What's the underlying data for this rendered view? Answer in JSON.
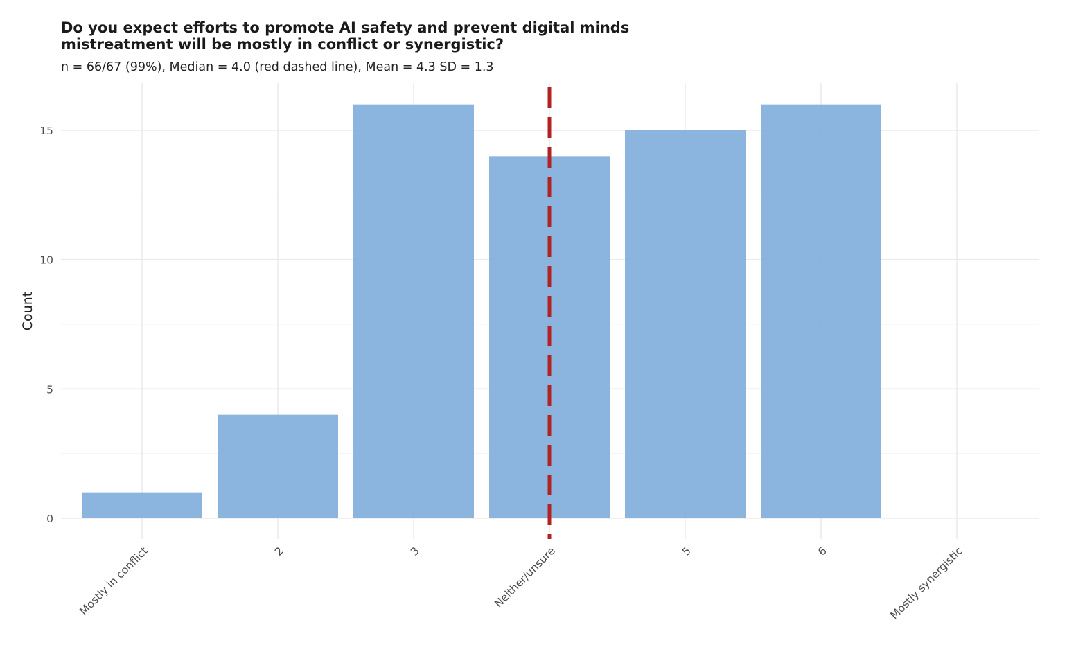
{
  "chart_data": {
    "type": "bar",
    "title": "Do you expect efforts to promote AI safety and prevent digital minds mistreatment will be mostly in conflict or synergistic?",
    "title_lines": [
      "Do you expect efforts to promote AI safety and prevent digital minds",
      "mistreatment will be mostly in conflict or synergistic?"
    ],
    "subtitle": "n = 66/67 (99%), Median = 4.0 (red dashed line), Mean = 4.3 SD = 1.3",
    "xlabel": "",
    "ylabel": "Count",
    "categories": [
      "Mostly in conflict",
      "2",
      "3",
      "Neither/unsure",
      "5",
      "6",
      "Mostly synergistic"
    ],
    "values": [
      1,
      4,
      16,
      14,
      15,
      16,
      0
    ],
    "ylim": [
      0,
      16.5
    ],
    "yticks": [
      0,
      5,
      10,
      15
    ],
    "median": 4.0,
    "grid": true,
    "legend": "none",
    "colors": {
      "bar": "#7eadda",
      "median_line": "#b22222",
      "grid": "#ebebeb",
      "tick_text": "#4d4d4d"
    }
  }
}
